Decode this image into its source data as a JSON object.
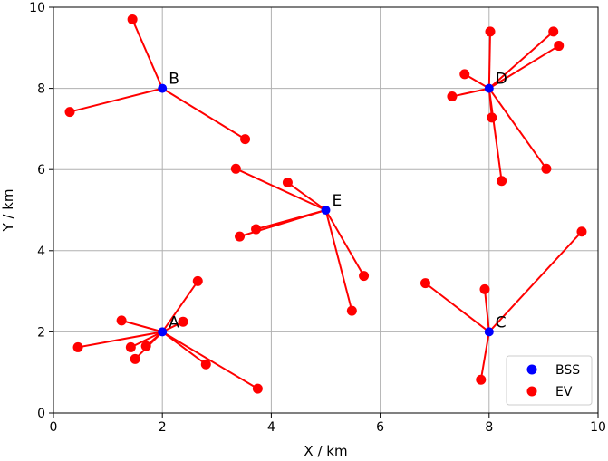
{
  "chart_data": {
    "type": "scatter",
    "xlabel": "X / km",
    "ylabel": "Y / km",
    "xlim": [
      0,
      10
    ],
    "ylim": [
      0,
      10
    ],
    "xticks": [
      0,
      2,
      4,
      6,
      8,
      10
    ],
    "yticks": [
      0,
      2,
      4,
      6,
      8,
      10
    ],
    "grid": true,
    "legend_position": "lower-right",
    "colors": {
      "bss": "#0000ff",
      "ev": "#ff0000",
      "line": "#ff0000",
      "grid": "#b0b0b0"
    },
    "series": [
      {
        "name": "BSS",
        "color": "#0000ff"
      },
      {
        "name": "EV",
        "color": "#ff0000"
      }
    ],
    "stations": [
      {
        "label": "A",
        "x": 2,
        "y": 2,
        "evs": [
          [
            2.65,
            3.25
          ],
          [
            1.25,
            2.28
          ],
          [
            2.38,
            2.25
          ],
          [
            0.45,
            1.62
          ],
          [
            1.42,
            1.62
          ],
          [
            1.7,
            1.65
          ],
          [
            1.5,
            1.33
          ],
          [
            2.8,
            1.2
          ],
          [
            3.75,
            0.6
          ]
        ]
      },
      {
        "label": "B",
        "x": 2,
        "y": 8,
        "evs": [
          [
            1.45,
            9.7
          ],
          [
            0.3,
            7.42
          ],
          [
            3.52,
            6.75
          ]
        ]
      },
      {
        "label": "C",
        "x": 8,
        "y": 2,
        "evs": [
          [
            9.7,
            4.47
          ],
          [
            6.83,
            3.2
          ],
          [
            7.92,
            3.05
          ],
          [
            7.85,
            0.82
          ]
        ]
      },
      {
        "label": "D",
        "x": 8,
        "y": 8,
        "evs": [
          [
            8.02,
            9.4
          ],
          [
            9.18,
            9.4
          ],
          [
            9.28,
            9.05
          ],
          [
            7.55,
            8.35
          ],
          [
            7.32,
            7.8
          ],
          [
            8.05,
            7.28
          ],
          [
            9.05,
            6.02
          ],
          [
            8.23,
            5.72
          ]
        ]
      },
      {
        "label": "E",
        "x": 5,
        "y": 5,
        "evs": [
          [
            3.35,
            6.02
          ],
          [
            4.3,
            5.68
          ],
          [
            3.72,
            4.53
          ],
          [
            3.42,
            4.35
          ],
          [
            5.7,
            3.38
          ],
          [
            5.48,
            2.52
          ]
        ]
      }
    ]
  }
}
